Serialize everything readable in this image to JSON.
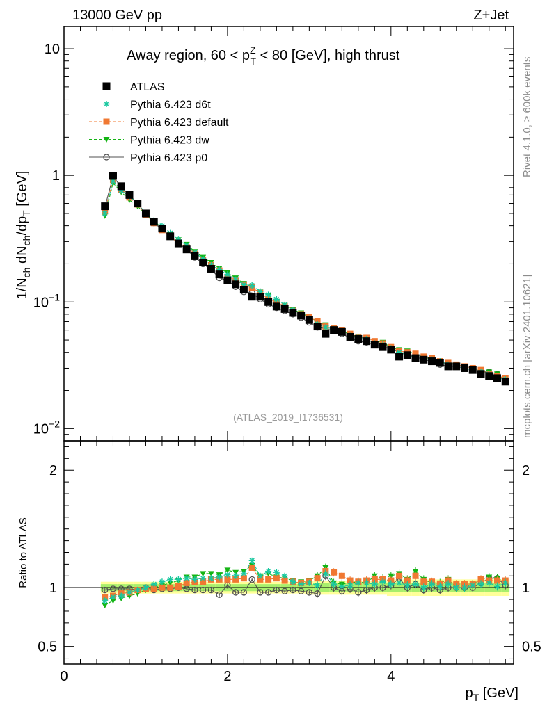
{
  "header": {
    "energy_label": "13000 GeV pp",
    "process_label": "Z+Jet",
    "rivet_label": "Rivet 4.1.0, ≥ 600k events",
    "source_label": "mcplots.cern.ch [arXiv:2401.10621]",
    "analysis_label": "(ATLAS_2019_I1736531)"
  },
  "colors": {
    "atlas": "#000000",
    "d6t": "#19c8a0",
    "default": "#f07832",
    "dw": "#14b414",
    "p0": "#505050",
    "band_outer": "#ffff99",
    "band_inner": "#a8ee6c"
  },
  "chart_data": [
    {
      "type": "scatter",
      "title": "Away region, 60 < pTZ < 80 [GeV], high thrust",
      "title_parts": {
        "pre": "Away region, 60 < p",
        "sup": "Z",
        "sub": "T",
        "post": " < 80 [GeV], high thrust"
      },
      "ylabel": "1/Nch dNch/dpT [GeV]",
      "yscale": "log",
      "ylim": [
        0.008,
        15
      ],
      "xlim": [
        0,
        5.5
      ],
      "yticks": [
        {
          "value": 10,
          "label": "10"
        },
        {
          "value": 1,
          "label": "1"
        },
        {
          "value": 0.1,
          "label": "10^-1"
        },
        {
          "value": 0.01,
          "label": "10^-2"
        }
      ],
      "x": [
        0.5,
        0.6,
        0.7,
        0.8,
        0.9,
        1.0,
        1.1,
        1.2,
        1.3,
        1.4,
        1.5,
        1.6,
        1.7,
        1.8,
        1.9,
        2.0,
        2.1,
        2.2,
        2.3,
        2.4,
        2.5,
        2.6,
        2.7,
        2.8,
        2.9,
        3.0,
        3.1,
        3.2,
        3.3,
        3.4,
        3.5,
        3.6,
        3.7,
        3.8,
        3.9,
        4.0,
        4.1,
        4.2,
        4.3,
        4.4,
        4.5,
        4.6,
        4.7,
        4.8,
        4.9,
        5.0,
        5.1,
        5.2,
        5.3,
        5.4
      ],
      "series": [
        {
          "name": "ATLAS",
          "marker": "square",
          "values": [
            0.57,
            0.99,
            0.82,
            0.7,
            0.6,
            0.5,
            0.43,
            0.38,
            0.33,
            0.29,
            0.26,
            0.23,
            0.205,
            0.183,
            0.165,
            0.148,
            0.138,
            0.125,
            0.11,
            0.11,
            0.1,
            0.092,
            0.088,
            0.082,
            0.078,
            0.072,
            0.064,
            0.056,
            0.06,
            0.058,
            0.053,
            0.051,
            0.049,
            0.046,
            0.044,
            0.042,
            0.037,
            0.038,
            0.036,
            0.035,
            0.034,
            0.033,
            0.031,
            0.031,
            0.03,
            0.029,
            0.027,
            0.026,
            0.025,
            0.0235
          ]
        },
        {
          "name": "Pythia 6.423 d6t",
          "marker": "star",
          "dashed": true,
          "values": [
            0.5,
            0.9,
            0.76,
            0.68,
            0.6,
            0.5,
            0.44,
            0.4,
            0.35,
            0.31,
            0.28,
            0.245,
            0.22,
            0.195,
            0.18,
            0.165,
            0.15,
            0.137,
            0.135,
            0.121,
            0.114,
            0.105,
            0.095,
            0.086,
            0.08,
            0.074,
            0.067,
            0.063,
            0.061,
            0.058,
            0.054,
            0.053,
            0.051,
            0.047,
            0.046,
            0.043,
            0.04,
            0.038,
            0.036,
            0.035,
            0.035,
            0.034,
            0.032,
            0.031,
            0.03,
            0.029,
            0.028,
            0.027,
            0.025,
            0.0245
          ]
        },
        {
          "name": "Pythia 6.423 default",
          "marker": "square",
          "dashed": true,
          "values": [
            0.52,
            0.92,
            0.77,
            0.67,
            0.59,
            0.49,
            0.42,
            0.37,
            0.33,
            0.29,
            0.27,
            0.24,
            0.215,
            0.195,
            0.177,
            0.157,
            0.147,
            0.137,
            0.13,
            0.118,
            0.106,
            0.1,
            0.092,
            0.085,
            0.08,
            0.076,
            0.07,
            0.064,
            0.062,
            0.06,
            0.056,
            0.053,
            0.052,
            0.049,
            0.047,
            0.044,
            0.041,
            0.04,
            0.039,
            0.037,
            0.036,
            0.034,
            0.033,
            0.032,
            0.031,
            0.03,
            0.029,
            0.027,
            0.026,
            0.025
          ]
        },
        {
          "name": "Pythia 6.423 dw",
          "marker": "triangle",
          "dashed": true,
          "values": [
            0.48,
            0.87,
            0.74,
            0.64,
            0.57,
            0.49,
            0.43,
            0.39,
            0.34,
            0.31,
            0.285,
            0.25,
            0.225,
            0.205,
            0.185,
            0.17,
            0.155,
            0.14,
            0.132,
            0.12,
            0.112,
            0.1,
            0.094,
            0.087,
            0.082,
            0.076,
            0.07,
            0.066,
            0.062,
            0.06,
            0.055,
            0.053,
            0.051,
            0.049,
            0.048,
            0.044,
            0.042,
            0.041,
            0.039,
            0.037,
            0.035,
            0.034,
            0.033,
            0.032,
            0.031,
            0.03,
            0.029,
            0.028,
            0.027,
            0.025
          ]
        },
        {
          "name": "Pythia 6.423 p0",
          "marker": "circle",
          "dashed": false,
          "values": [
            0.56,
            0.98,
            0.81,
            0.7,
            0.6,
            0.5,
            0.42,
            0.375,
            0.33,
            0.29,
            0.26,
            0.225,
            0.2,
            0.18,
            0.155,
            0.148,
            0.132,
            0.12,
            0.118,
            0.105,
            0.096,
            0.09,
            0.085,
            0.08,
            0.075,
            0.069,
            0.063,
            0.062,
            0.059,
            0.056,
            0.052,
            0.049,
            0.048,
            0.046,
            0.044,
            0.043,
            0.04,
            0.038,
            0.037,
            0.035,
            0.034,
            0.032,
            0.031,
            0.031,
            0.03,
            0.029,
            0.028,
            0.028,
            0.027,
            0.024
          ]
        }
      ],
      "legend": {
        "position": "top-left",
        "entries": [
          "ATLAS",
          "Pythia 6.423 d6t",
          "Pythia 6.423 default",
          "Pythia 6.423 dw",
          "Pythia 6.423 p0"
        ]
      }
    },
    {
      "type": "scatter",
      "ylabel": "Ratio to ATLAS",
      "xlabel": "pT [GeV]",
      "xlim": [
        0,
        5.5
      ],
      "ylim": [
        0.35,
        2.25
      ],
      "xticks": [
        {
          "value": 0,
          "label": "0"
        },
        {
          "value": 2,
          "label": "2"
        },
        {
          "value": 4,
          "label": "4"
        }
      ],
      "yticks": [
        {
          "value": 0.5,
          "label": "0.5"
        },
        {
          "value": 1,
          "label": "1"
        },
        {
          "value": 2,
          "label": "2"
        }
      ],
      "x": [
        0.5,
        0.6,
        0.7,
        0.8,
        0.9,
        1.0,
        1.1,
        1.2,
        1.3,
        1.4,
        1.5,
        1.6,
        1.7,
        1.8,
        1.9,
        2.0,
        2.1,
        2.2,
        2.3,
        2.4,
        2.5,
        2.6,
        2.7,
        2.8,
        2.9,
        3.0,
        3.1,
        3.2,
        3.3,
        3.4,
        3.5,
        3.6,
        3.7,
        3.8,
        3.9,
        4.0,
        4.1,
        4.2,
        4.3,
        4.4,
        4.5,
        4.6,
        4.7,
        4.8,
        4.9,
        5.0,
        5.1,
        5.2,
        5.3,
        5.4
      ],
      "band_inner": [
        0.03,
        0.03,
        0.03,
        0.03,
        0.03,
        0.03,
        0.03,
        0.03,
        0.03,
        0.03,
        0.03,
        0.03,
        0.03,
        0.03,
        0.03,
        0.03,
        0.03,
        0.03,
        0.03,
        0.03,
        0.03,
        0.03,
        0.03,
        0.03,
        0.03,
        0.03,
        0.04,
        0.04,
        0.04,
        0.04,
        0.04,
        0.04,
        0.04,
        0.04,
        0.04,
        0.04,
        0.04,
        0.04,
        0.04,
        0.04,
        0.04,
        0.04,
        0.04,
        0.04,
        0.04,
        0.04,
        0.04,
        0.04,
        0.04,
        0.04
      ],
      "band_outer": [
        0.05,
        0.05,
        0.05,
        0.05,
        0.05,
        0.05,
        0.05,
        0.05,
        0.05,
        0.05,
        0.05,
        0.05,
        0.05,
        0.05,
        0.05,
        0.05,
        0.05,
        0.05,
        0.05,
        0.05,
        0.05,
        0.05,
        0.05,
        0.05,
        0.05,
        0.06,
        0.06,
        0.06,
        0.06,
        0.06,
        0.06,
        0.06,
        0.06,
        0.06,
        0.06,
        0.07,
        0.07,
        0.07,
        0.07,
        0.07,
        0.07,
        0.07,
        0.07,
        0.07,
        0.07,
        0.07,
        0.07,
        0.07,
        0.07,
        0.07
      ],
      "series": [
        {
          "name": "Pythia 6.423 d6t",
          "values": [
            0.89,
            0.92,
            0.93,
            0.96,
            0.98,
            1.0,
            1.03,
            1.05,
            1.07,
            1.07,
            1.08,
            1.07,
            1.08,
            1.08,
            1.09,
            1.11,
            1.1,
            1.12,
            1.23,
            1.1,
            1.14,
            1.13,
            1.1,
            1.05,
            1.03,
            1.04,
            1.02,
            1.12,
            1.03,
            1.01,
            1.02,
            1.04,
            1.04,
            1.03,
            1.05,
            1.03,
            1.04,
            1.02,
            1.03,
            1.0,
            1.03,
            1.01,
            1.03,
            1.0,
            1.0,
            1.02,
            1.03,
            1.04,
            1.01,
            1.04
          ]
        },
        {
          "name": "Pythia 6.423 default",
          "values": [
            0.92,
            0.93,
            0.95,
            0.96,
            0.98,
            0.99,
            0.99,
            1.0,
            1.0,
            1.01,
            1.04,
            1.05,
            1.05,
            1.07,
            1.07,
            1.07,
            1.07,
            1.08,
            1.17,
            1.07,
            1.07,
            1.08,
            1.06,
            1.05,
            1.04,
            1.05,
            1.08,
            1.14,
            1.13,
            1.1,
            1.06,
            1.05,
            1.06,
            1.07,
            1.07,
            1.06,
            1.1,
            1.06,
            1.1,
            1.05,
            1.05,
            1.03,
            1.06,
            1.03,
            1.03,
            1.03,
            1.07,
            1.06,
            1.06,
            1.06
          ]
        },
        {
          "name": "Pythia 6.423 dw",
          "values": [
            0.85,
            0.89,
            0.91,
            0.93,
            0.95,
            0.98,
            1.0,
            1.02,
            1.04,
            1.06,
            1.09,
            1.09,
            1.12,
            1.12,
            1.11,
            1.15,
            1.13,
            1.14,
            1.19,
            1.1,
            1.12,
            1.09,
            1.08,
            1.06,
            1.05,
            1.06,
            1.1,
            1.17,
            1.04,
            1.03,
            1.04,
            1.05,
            1.04,
            1.1,
            1.08,
            1.1,
            1.12,
            1.07,
            1.14,
            1.07,
            1.04,
            1.04,
            1.07,
            1.0,
            1.0,
            1.03,
            1.07,
            1.09,
            1.08,
            1.05
          ]
        },
        {
          "name": "Pythia 6.423 p0",
          "values": [
            0.98,
            0.99,
            0.99,
            0.99,
            0.98,
            1.0,
            0.98,
            0.99,
            0.99,
            1.0,
            0.99,
            0.98,
            0.98,
            0.98,
            0.94,
            1.02,
            0.96,
            0.96,
            1.07,
            0.96,
            0.96,
            0.98,
            0.97,
            0.98,
            0.97,
            0.96,
            0.95,
            1.1,
            1.0,
            0.97,
            0.99,
            0.96,
            0.98,
            1.0,
            1.0,
            1.02,
            1.08,
            1.0,
            1.03,
            0.98,
            1.0,
            0.98,
            1.0,
            1.0,
            1.0,
            1.0,
            1.04,
            1.08,
            1.08,
            1.02
          ]
        }
      ]
    }
  ]
}
